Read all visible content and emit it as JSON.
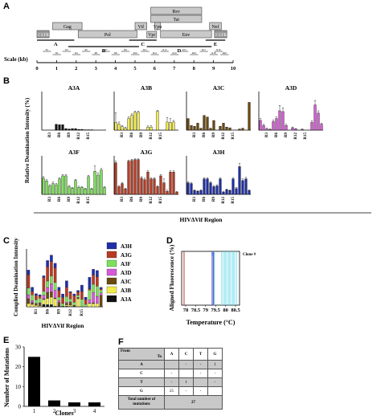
{
  "panels": {
    "a": "A",
    "b": "B",
    "c": "C",
    "d": "D",
    "e": "E",
    "f": "F"
  },
  "panelA": {
    "genes": [
      "Gag",
      "Pol",
      "Vif",
      "Vpr",
      "Tat",
      "Rev",
      "Vpu",
      "Env",
      "Nef"
    ],
    "ltr5": "5' LTR",
    "ltr3": "3' LTR",
    "segments": [
      "A",
      "B",
      "C",
      "D",
      "E"
    ],
    "regions": [
      "R1",
      "R2",
      "R3",
      "R4",
      "R5",
      "R6",
      "R7",
      "R8",
      "R9",
      "R10",
      "R11",
      "R12",
      "R13",
      "R14",
      "R15",
      "R16",
      "R17",
      "R18",
      "R19",
      "R20"
    ],
    "scale_label": "Scale (kb)",
    "scale_ticks": [
      "0",
      "1",
      "2",
      "3",
      "4",
      "5",
      "6",
      "7",
      "8",
      "9",
      "10"
    ]
  },
  "panelB": {
    "ylabel": "Relative Deamination Intensity (%)",
    "xlabel": "HIVΔVif Region",
    "xticks": [
      "R3",
      "R6",
      "R9",
      "R12",
      "R15"
    ]
  },
  "panelC": {
    "ylabel": "Complied Deamination Intensity",
    "xlabel": "HIVΔVif Region",
    "xticks": [
      "R3",
      "R6",
      "R9",
      "R12",
      "R15"
    ]
  },
  "panelD": {
    "ylabel": "Aligned Fluorescence (%)",
    "xlabel": "Temperature (°C)",
    "xticks": [
      "78",
      "78.5",
      "79",
      "79.5",
      "80",
      "80.5"
    ],
    "clone_title": "Clone #",
    "clone_numbers": [
      "1",
      "2",
      "3",
      "4"
    ]
  },
  "panelE": {
    "ylabel": "Number of Mutations",
    "xlabel": "Clones"
  },
  "panelF": {
    "corner_from": "From",
    "corner_to": "To",
    "columns": [
      "A",
      "C",
      "T",
      "G"
    ],
    "rows": [
      {
        "label": "A",
        "cells": [
          "",
          "-",
          "-",
          "1"
        ]
      },
      {
        "label": "C",
        "cells": [
          "-",
          "",
          "-",
          "-"
        ]
      },
      {
        "label": "T",
        "cells": [
          "-",
          "1",
          "",
          "-"
        ]
      },
      {
        "label": "G",
        "cells": [
          "25",
          "-",
          "-",
          ""
        ]
      }
    ],
    "total_label": "Total number of mutations",
    "total_value": "27"
  },
  "colors": {
    "A3A": "#111111",
    "A3B": "#f2ec4a",
    "A3C": "#6a4a10",
    "A3D": "#d65ad6",
    "A3F": "#7ee05a",
    "A3G": "#b83a22",
    "A3H": "#1f2fa8",
    "clone1": "#c0392b",
    "clone2": "#3b3bcf",
    "clone3": "#6a5acd",
    "clone4": "#4fd0e0"
  },
  "chart_data": [
    {
      "type": "bar",
      "subplots": [
        {
          "name": "A3A",
          "x": [
            "R1",
            "R2",
            "R3",
            "R4",
            "R5",
            "R6",
            "R7",
            "R8",
            "R9",
            "R10",
            "R11",
            "R12",
            "R13",
            "R14",
            "R15",
            "R16",
            "R17",
            "R18",
            "R19",
            "R20"
          ],
          "values": [
            0,
            0,
            0,
            0,
            15,
            14,
            14,
            4,
            3,
            4,
            4,
            2,
            2,
            1,
            1,
            1,
            0,
            0,
            0,
            0
          ]
        },
        {
          "name": "A3B",
          "x": [
            "R1",
            "R2",
            "R3",
            "R4",
            "R5",
            "R6",
            "R7",
            "R8",
            "R9",
            "R10",
            "R11",
            "R12",
            "R13",
            "R14",
            "R15",
            "R16",
            "R17",
            "R18",
            "R19",
            "R20"
          ],
          "values": [
            20,
            15,
            9,
            5,
            30,
            38,
            46,
            46,
            0,
            0,
            8,
            8,
            0,
            49,
            0,
            0,
            21,
            20,
            21,
            0
          ],
          "errors": [
            25,
            6,
            3,
            2,
            4,
            4,
            3,
            3,
            0,
            0,
            3,
            3,
            0,
            2,
            0,
            0,
            12,
            10,
            4,
            0
          ]
        },
        {
          "name": "A3C",
          "x": [
            "R1",
            "R2",
            "R3",
            "R4",
            "R5",
            "R6",
            "R7",
            "R8",
            "R9",
            "R10",
            "R11",
            "R12",
            "R13",
            "R14",
            "R15",
            "R16",
            "R17",
            "R18",
            "R19",
            "R20"
          ],
          "values": [
            30,
            12,
            10,
            18,
            5,
            38,
            34,
            5,
            25,
            0,
            10,
            18,
            8,
            6,
            0,
            0,
            3,
            5,
            0,
            72
          ]
        },
        {
          "name": "A3D",
          "x": [
            "R1",
            "R2",
            "R3",
            "R4",
            "R5",
            "R6",
            "R7",
            "R8",
            "R9",
            "R10",
            "R11",
            "R12",
            "R13",
            "R14",
            "R15",
            "R16",
            "R17",
            "R18",
            "R19",
            "R20"
          ],
          "values": [
            25,
            12,
            3,
            2,
            22,
            30,
            50,
            48,
            12,
            0,
            6,
            3,
            0,
            2,
            0,
            0,
            20,
            65,
            44,
            15
          ],
          "errors": [
            5,
            3,
            2,
            1,
            4,
            4,
            14,
            10,
            3,
            0,
            2,
            1,
            0,
            1,
            0,
            0,
            4,
            12,
            6,
            3
          ]
        },
        {
          "name": "A3F",
          "x": [
            "R1",
            "R2",
            "R3",
            "R4",
            "R5",
            "R6",
            "R7",
            "R8",
            "R9",
            "R10",
            "R11",
            "R12",
            "R13",
            "R14",
            "R15",
            "R16",
            "R17",
            "R18",
            "R19",
            "R20"
          ],
          "values": [
            42,
            35,
            22,
            28,
            25,
            40,
            48,
            48,
            20,
            16,
            36,
            18,
            18,
            14,
            46,
            14,
            60,
            50,
            63,
            18
          ],
          "errors": [
            4,
            3,
            3,
            4,
            3,
            3,
            3,
            3,
            3,
            2,
            3,
            3,
            2,
            2,
            3,
            2,
            14,
            6,
            4,
            2
          ]
        },
        {
          "name": "A3G",
          "x": [
            "R1",
            "R2",
            "R3",
            "R4",
            "R5",
            "R6",
            "R7",
            "R8",
            "R9",
            "R10",
            "R11",
            "R12",
            "R13",
            "R14",
            "R15",
            "R16",
            "R17",
            "R18",
            "R19",
            "R20"
          ],
          "values": [
            82,
            20,
            28,
            14,
            86,
            88,
            90,
            90,
            42,
            38,
            58,
            40,
            40,
            20,
            48,
            30,
            8,
            58,
            58,
            6
          ],
          "errors": [
            4,
            3,
            3,
            2,
            3,
            3,
            2,
            2,
            4,
            4,
            3,
            3,
            3,
            2,
            3,
            10,
            3,
            3,
            3,
            2
          ]
        },
        {
          "name": "A3H",
          "x": [
            "R1",
            "R2",
            "R3",
            "R4",
            "R5",
            "R6",
            "R7",
            "R8",
            "R9",
            "R10",
            "R11",
            "R12",
            "R13",
            "R14",
            "R15",
            "R16",
            "R17",
            "R18",
            "R19",
            "R20"
          ],
          "values": [
            30,
            28,
            10,
            8,
            10,
            40,
            40,
            30,
            20,
            22,
            40,
            6,
            12,
            10,
            40,
            15,
            72,
            36,
            40,
            10
          ],
          "errors": [
            3,
            3,
            2,
            2,
            2,
            3,
            3,
            3,
            3,
            3,
            3,
            2,
            2,
            2,
            3,
            3,
            8,
            4,
            4,
            2
          ]
        }
      ],
      "ylabel": "Relative Deamination Intensity (%)",
      "xlabel": "HIVΔVif Region",
      "ylim": [
        0,
        100
      ]
    },
    {
      "type": "bar",
      "stacked": true,
      "categories": [
        "R1",
        "R2",
        "R3",
        "R4",
        "R5",
        "R6",
        "R7",
        "R8",
        "R9",
        "R10",
        "R11",
        "R12",
        "R13",
        "R14",
        "R15",
        "R16",
        "R17",
        "R18",
        "R19",
        "R20"
      ],
      "series": [
        {
          "name": "A3A",
          "values": [
            0,
            0,
            0,
            0,
            15,
            14,
            14,
            4,
            3,
            4,
            4,
            2,
            2,
            1,
            1,
            1,
            0,
            0,
            0,
            0
          ]
        },
        {
          "name": "A3B",
          "values": [
            20,
            15,
            9,
            5,
            30,
            38,
            46,
            46,
            0,
            0,
            8,
            8,
            0,
            49,
            0,
            0,
            21,
            20,
            21,
            0
          ]
        },
        {
          "name": "A3C",
          "values": [
            30,
            12,
            10,
            18,
            5,
            38,
            34,
            5,
            25,
            0,
            10,
            18,
            8,
            6,
            0,
            0,
            3,
            5,
            0,
            72
          ]
        },
        {
          "name": "A3D",
          "values": [
            25,
            12,
            3,
            2,
            22,
            30,
            50,
            48,
            12,
            0,
            6,
            3,
            0,
            2,
            0,
            0,
            20,
            65,
            44,
            15
          ]
        },
        {
          "name": "A3F",
          "values": [
            42,
            35,
            22,
            28,
            25,
            40,
            48,
            48,
            20,
            16,
            36,
            18,
            18,
            14,
            46,
            14,
            60,
            50,
            63,
            18
          ]
        },
        {
          "name": "A3G",
          "values": [
            82,
            20,
            28,
            14,
            86,
            88,
            90,
            90,
            42,
            38,
            58,
            40,
            40,
            20,
            48,
            30,
            8,
            58,
            58,
            6
          ]
        },
        {
          "name": "A3H",
          "values": [
            30,
            28,
            10,
            8,
            10,
            40,
            40,
            30,
            20,
            22,
            40,
            6,
            12,
            10,
            40,
            15,
            72,
            36,
            40,
            10
          ]
        }
      ],
      "ylabel": "Complied Deamination Intensity",
      "xlabel": "HIVΔVif Region",
      "legend": "right"
    },
    {
      "type": "line",
      "series": [
        {
          "name": "1",
          "x": [
            77.92,
            77.92
          ],
          "y": [
            0,
            100
          ]
        },
        {
          "name": "2",
          "x": [
            79.33,
            79.33
          ],
          "y": [
            0,
            100
          ]
        },
        {
          "name": "3",
          "x": [
            79.39,
            79.39
          ],
          "y": [
            0,
            100
          ]
        },
        {
          "name": "4",
          "x": [
            79.43,
            79.43
          ],
          "y": [
            0,
            100
          ]
        }
      ],
      "xlim": [
        77.8,
        80.7
      ],
      "ylim": [
        0,
        100
      ],
      "xlabel": "Temperature (°C)",
      "ylabel": "Aligned Fluorescence (%)",
      "legend": "top-right"
    },
    {
      "type": "bar",
      "categories": [
        "1",
        "2",
        "3",
        "4"
      ],
      "values": [
        25,
        3,
        2,
        2
      ],
      "ylim": [
        0,
        30
      ],
      "yticks": [
        0,
        10,
        20,
        30
      ],
      "xlabel": "Clones",
      "ylabel": "Number of Mutations"
    },
    {
      "type": "table",
      "columns": [
        "A",
        "C",
        "T",
        "G"
      ],
      "rows": [
        [
          "A",
          "",
          "-",
          "-",
          "1"
        ],
        [
          "C",
          "-",
          "",
          "-",
          "-"
        ],
        [
          "T",
          "-",
          "1",
          "",
          "-"
        ],
        [
          "G",
          "25",
          "-",
          "-",
          ""
        ]
      ],
      "total": 27
    }
  ]
}
